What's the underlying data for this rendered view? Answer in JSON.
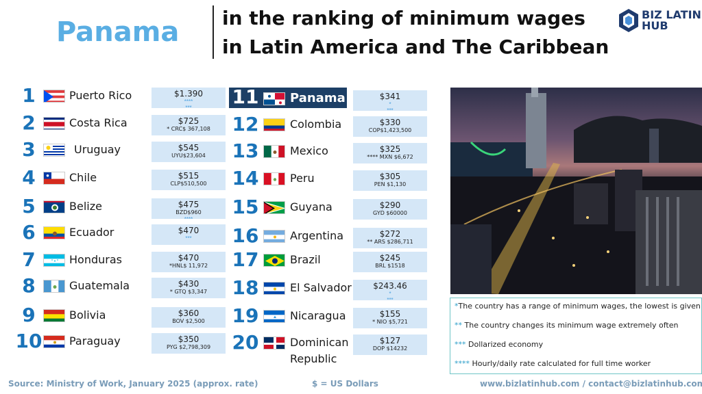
{
  "header": {
    "country": "Panama",
    "title_line1": "in the ranking of minimum wages",
    "title_line2": "in Latin America and The Caribbean"
  },
  "logo": {
    "line1": "BIZ LATIN",
    "line2": "HUB",
    "icon": "bizlatinhub-logo-icon",
    "color": "#1f3b6e"
  },
  "colors": {
    "rank": "#1a73b8",
    "box": "#d5e7f7",
    "highlight": "#1c3f66",
    "country_heading": "#5aaee3"
  },
  "left": [
    {
      "rank": "1",
      "country": "Puerto Rico",
      "usd": "$1.390",
      "local": "",
      "marks": "****\n***"
    },
    {
      "rank": "2",
      "country": "Costa Rica",
      "usd": "$725",
      "local": "* CRC$ 367,108",
      "marks": ""
    },
    {
      "rank": "3",
      "country": "Uruguay",
      "usd": "$545",
      "local": "UYU$23,604",
      "marks": ""
    },
    {
      "rank": "4",
      "country": "Chile",
      "usd": "$515",
      "local": "CLP$510,500",
      "marks": ""
    },
    {
      "rank": "5",
      "country": "Belize",
      "usd": "$475",
      "local": "BZD$960",
      "marks": "****"
    },
    {
      "rank": "6",
      "country": "Ecuador",
      "usd": "$470",
      "local": "",
      "marks": "***"
    },
    {
      "rank": "7",
      "country": "Honduras",
      "usd": "$470",
      "local": "*HNL$ 11,972",
      "marks": ""
    },
    {
      "rank": "8",
      "country": "Guatemala",
      "usd": "$430",
      "local": "* GTQ $3,347",
      "marks": ""
    },
    {
      "rank": "9",
      "country": "Bolivia",
      "usd": "$360",
      "local": "BOV $2,500",
      "marks": ""
    },
    {
      "rank": "10",
      "country": "Paraguay",
      "usd": "$350",
      "local": "PYG $2,798,309",
      "marks": ""
    }
  ],
  "right": [
    {
      "rank": "11",
      "country": "Panama",
      "usd": "$341",
      "local": "",
      "marks": "*\n***"
    },
    {
      "rank": "12",
      "country": "Colombia",
      "usd": "$330",
      "local": "COP$1,423,500",
      "marks": ""
    },
    {
      "rank": "13",
      "country": "Mexico",
      "usd": "$325",
      "local": "****  MXN $6,672",
      "marks": ""
    },
    {
      "rank": "14",
      "country": "Peru",
      "usd": "$305",
      "local": "PEN $1,130",
      "marks": ""
    },
    {
      "rank": "15",
      "country": "Guyana",
      "usd": "$290",
      "local": "GYD $60000",
      "marks": ""
    },
    {
      "rank": "16",
      "country": "Argentina",
      "usd": "$272",
      "local": "** ARS $286,711",
      "marks": ""
    },
    {
      "rank": "17",
      "country": "Brazil",
      "usd": "$245",
      "local": "BRL $1518",
      "marks": ""
    },
    {
      "rank": "18",
      "country": "El Salvador",
      "usd": "$243.46",
      "local": "",
      "marks": "*\n***"
    },
    {
      "rank": "19",
      "country": "Nicaragua",
      "usd": "$155",
      "local": "*  NIO  $5,721",
      "marks": ""
    },
    {
      "rank": "20",
      "country": "Dominican\nRepublic",
      "usd": "$127",
      "local": "DOP $14232",
      "marks": ""
    }
  ],
  "legend": [
    {
      "stars": "*",
      "text": "The country has a range of minimum wages, the lowest is given here"
    },
    {
      "stars": "**",
      "text": " The country changes its minimum wage extremely often"
    },
    {
      "stars": "***",
      "text": " Dollarized economy"
    },
    {
      "stars": "****",
      "text": " Hourly/daily rate calculated for full time worker"
    }
  ],
  "footer": {
    "source": "Source: Ministry of Work, January 2025 (approx. rate)",
    "currency": "$ = US Dollars",
    "contact": "www.bizlatinhub.com / contact@bizlatinhub.com"
  }
}
